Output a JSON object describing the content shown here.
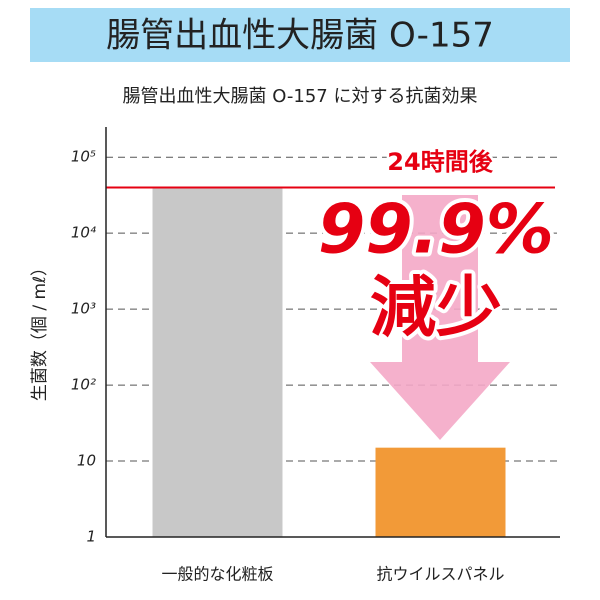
{
  "chart_data": {
    "type": "bar",
    "log_scale": true,
    "title": "腸管出血性大腸菌 O-157",
    "subtitle": "腸管出血性大腸菌 O-157 に対する抗菌効果",
    "ylabel": "生菌数（個 / mℓ）",
    "categories": [
      "一般的な化粧板",
      "抗ウイルスパネル"
    ],
    "values": [
      40000,
      15
    ],
    "colors": [
      "#c8c8c8",
      "#f29a38"
    ],
    "ylim": [
      1,
      250000
    ],
    "yticks": [
      1,
      10,
      {
        "value": 100,
        "label": "10²"
      },
      {
        "value": 1000,
        "label": "10³"
      },
      {
        "value": 10000,
        "label": "10⁴"
      },
      {
        "value": 100000,
        "label": "10⁵"
      }
    ],
    "grid": true,
    "reference_color": "#e60012",
    "annotations": {
      "time": "24時間後",
      "reduction": "99.9%",
      "decrease": "減少"
    }
  }
}
